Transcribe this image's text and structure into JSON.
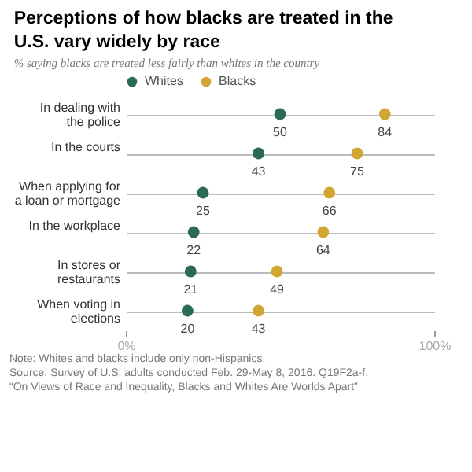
{
  "chart_data": {
    "type": "scatter",
    "title": "Perceptions of how blacks are treated in the U.S. vary widely by race",
    "subtitle": "% saying blacks are treated less fairly than whites in the country",
    "categories": [
      "In dealing with the police",
      "In the courts",
      "When applying for a loan or mortgage",
      "In the workplace",
      "In stores or restaurants",
      "When voting in elections"
    ],
    "orientation": "horizontal",
    "series": [
      {
        "name": "Whites",
        "color": "#2b6a58",
        "values": [
          50,
          43,
          25,
          22,
          21,
          20
        ]
      },
      {
        "name": "Blacks",
        "color": "#d1a633",
        "values": [
          84,
          75,
          66,
          64,
          49,
          43
        ]
      }
    ],
    "xlim": [
      0,
      100
    ],
    "xticks": [
      {
        "value": 0,
        "label": "0%"
      },
      {
        "value": 100,
        "label": "100%"
      }
    ],
    "data_labels": true,
    "grid": "y",
    "legend": "top",
    "marker": "circle",
    "annotations": [
      "Note: Whites and blacks include only non-Hispanics.",
      "Source: Survey of U.S. adults conducted Feb. 29-May 8, 2016. Q19F2a-f.",
      "“On Views of Race and Inequality, Blacks and Whites Are Worlds Apart”"
    ]
  }
}
